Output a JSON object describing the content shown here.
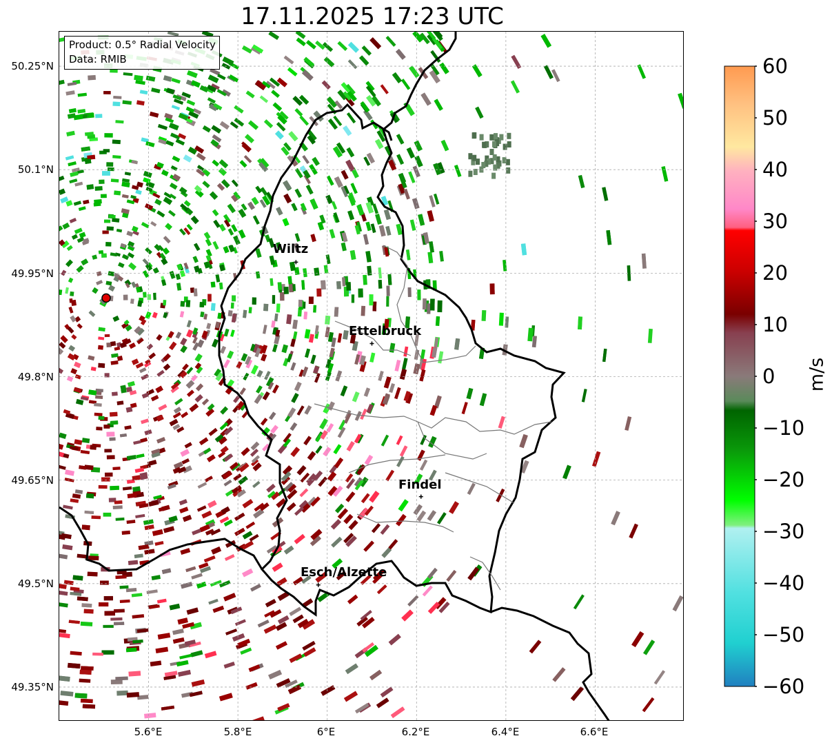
{
  "title": "17.11.2025 17:23 UTC",
  "info": {
    "product": "Product: 0.5° Radial Velocity",
    "data": "Data: RMIB"
  },
  "map": {
    "lon_range": [
      5.4,
      6.8
    ],
    "lat_range": [
      49.3,
      50.3
    ],
    "lon_ticks": [
      "5.6°E",
      "5.8°E",
      "6°E",
      "6.2°E",
      "6.4°E",
      "6.6°E"
    ],
    "lat_ticks": [
      "50.25°N",
      "50.1°N",
      "49.95°N",
      "49.8°N",
      "49.65°N",
      "49.5°N",
      "49.35°N"
    ],
    "radar_site": {
      "lon": 5.505,
      "lat": 49.914
    },
    "cities": [
      {
        "name": "Wiltz",
        "lon": 5.93,
        "lat": 49.966
      },
      {
        "name": "Ettelbruck",
        "lon": 6.1,
        "lat": 49.848
      },
      {
        "name": "Findel",
        "lon": 6.21,
        "lat": 49.626
      },
      {
        "name": "Esch/Alzette",
        "lon": 5.98,
        "lat": 49.498
      }
    ]
  },
  "colorbar": {
    "label": "m/s",
    "ticks": [
      "60",
      "50",
      "40",
      "30",
      "20",
      "10",
      "0",
      "−10",
      "−20",
      "−30",
      "−40",
      "−50",
      "−60"
    ],
    "range": [
      -60,
      60
    ],
    "colors": {
      "neg_cyan": "#29dcdc",
      "neg_green": "#08c908",
      "dark_green": "#006400",
      "zero_grey": "#8a7a7a",
      "dark_red": "#7a0000",
      "red": "#ff0000",
      "pink": "#ff8ac8",
      "orange": "#ff9a50"
    }
  }
}
